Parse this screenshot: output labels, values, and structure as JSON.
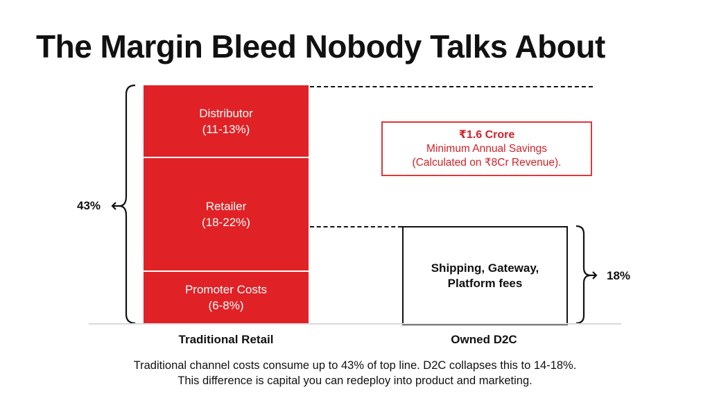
{
  "title": "The Margin Bleed Nobody Talks About",
  "chart_data": {
    "type": "bar",
    "stacked": true,
    "categories": [
      "Traditional Retail",
      "Owned D2C"
    ],
    "series": [
      {
        "name": "Distributor",
        "category": "Traditional Retail",
        "label": "(11-13%)",
        "range": [
          11,
          13
        ]
      },
      {
        "name": "Retailer",
        "category": "Traditional Retail",
        "label": "(18-22%)",
        "range": [
          18,
          22
        ]
      },
      {
        "name": "Promoter Costs",
        "category": "Traditional Retail",
        "label": "(6-8%)",
        "range": [
          6,
          8
        ]
      },
      {
        "name": "Shipping, Gateway,",
        "name2": "Platform fees",
        "category": "Owned D2C"
      }
    ],
    "totals": {
      "traditional": "43%",
      "d2c": "18%"
    },
    "colors": {
      "traditional": "#e02226",
      "d2c": "#ffffff",
      "callout": "#d32027"
    }
  },
  "callout": {
    "headline": "₹1.6 Crore",
    "line1": "Minimum Annual Savings",
    "line2": "(Calculated on ₹8Cr Revenue)."
  },
  "caption": {
    "line1": "Traditional channel costs consume up to 43% of top line. D2C collapses this to 14-18%.",
    "line2": "This difference is capital you can redeploy into product and marketing."
  }
}
